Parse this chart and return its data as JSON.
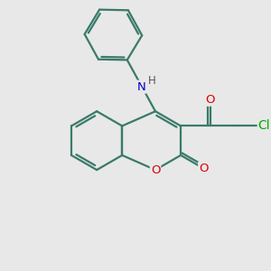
{
  "bg_color": "#e8e8e8",
  "bond_color": "#3a7a6a",
  "bond_width": 1.6,
  "atom_colors": {
    "N": "#0000cc",
    "O": "#dd0000",
    "Cl": "#00aa00",
    "C": "#3a7a6a"
  },
  "font_size": 9.5,
  "figsize": [
    3.0,
    3.0
  ],
  "dpi": 100
}
